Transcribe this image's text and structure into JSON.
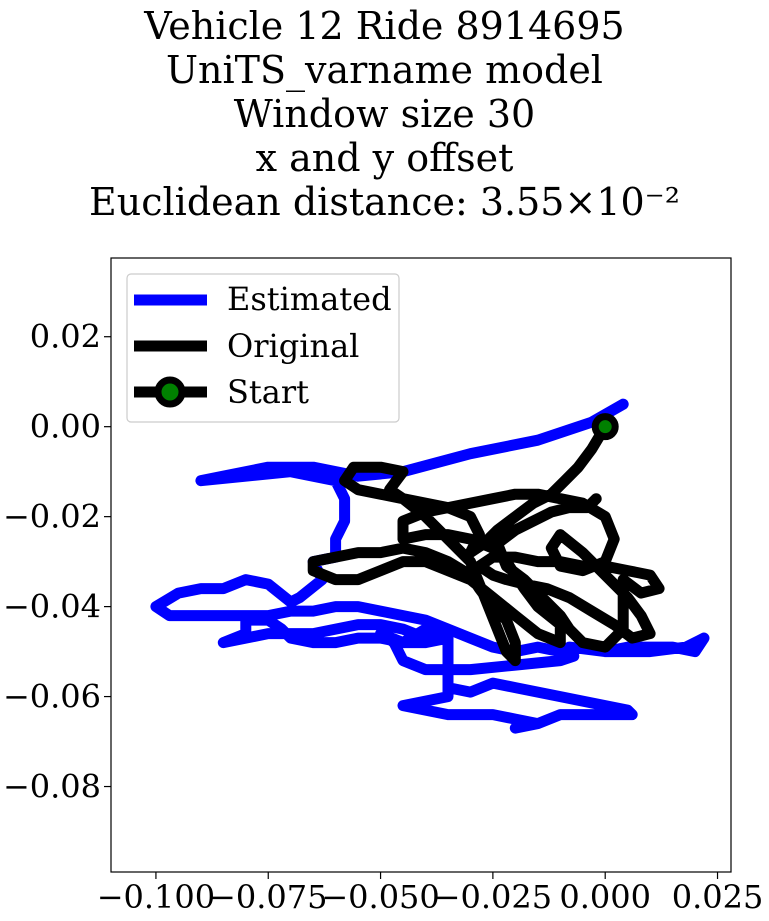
{
  "chart_data": {
    "type": "line",
    "title_lines": [
      "Vehicle 12 Ride 8914695",
      "UniTS_varname model",
      "Window size 30",
      "x and y offset",
      "Euclidean distance: 3.55×10⁻²"
    ],
    "xlim": [
      -0.11,
      0.028
    ],
    "ylim": [
      -0.099,
      0.0375
    ],
    "x_ticks": [
      {
        "value": -0.1,
        "label": "−0.100"
      },
      {
        "value": -0.075,
        "label": "−0.075"
      },
      {
        "value": -0.05,
        "label": "−0.050"
      },
      {
        "value": -0.025,
        "label": "−0.025"
      },
      {
        "value": 0.0,
        "label": "0.000"
      },
      {
        "value": 0.025,
        "label": "0.025"
      }
    ],
    "y_ticks": [
      {
        "value": 0.02,
        "label": "0.02"
      },
      {
        "value": 0.0,
        "label": "0.00"
      },
      {
        "value": -0.02,
        "label": "−0.02"
      },
      {
        "value": -0.04,
        "label": "−0.04"
      },
      {
        "value": -0.06,
        "label": "−0.06"
      },
      {
        "value": -0.08,
        "label": "−0.08"
      }
    ],
    "legend_position": "upper-left",
    "series": [
      {
        "name": "Estimated",
        "color": "#0000ff",
        "points": [
          [
            0.004,
            0.005
          ],
          [
            -0.003,
            0.001
          ],
          [
            -0.015,
            -0.003
          ],
          [
            -0.03,
            -0.006
          ],
          [
            -0.045,
            -0.01
          ],
          [
            -0.055,
            -0.011
          ],
          [
            -0.065,
            -0.009
          ],
          [
            -0.075,
            -0.009
          ],
          [
            -0.085,
            -0.011
          ],
          [
            -0.09,
            -0.012
          ],
          [
            -0.08,
            -0.011
          ],
          [
            -0.07,
            -0.01
          ],
          [
            -0.06,
            -0.012
          ],
          [
            -0.058,
            -0.016
          ],
          [
            -0.058,
            -0.021
          ],
          [
            -0.06,
            -0.025
          ],
          [
            -0.06,
            -0.029
          ],
          [
            -0.065,
            -0.03
          ],
          [
            -0.063,
            -0.034
          ],
          [
            -0.068,
            -0.038
          ],
          [
            -0.07,
            -0.039
          ],
          [
            -0.075,
            -0.035
          ],
          [
            -0.08,
            -0.034
          ],
          [
            -0.085,
            -0.036
          ],
          [
            -0.09,
            -0.036
          ],
          [
            -0.095,
            -0.037
          ],
          [
            -0.1,
            -0.04
          ],
          [
            -0.097,
            -0.042
          ],
          [
            -0.085,
            -0.042
          ],
          [
            -0.075,
            -0.042
          ],
          [
            -0.07,
            -0.041
          ],
          [
            -0.065,
            -0.041
          ],
          [
            -0.06,
            -0.04
          ],
          [
            -0.055,
            -0.04
          ],
          [
            -0.05,
            -0.041
          ],
          [
            -0.045,
            -0.042
          ],
          [
            -0.04,
            -0.043
          ],
          [
            -0.035,
            -0.045
          ],
          [
            -0.03,
            -0.047
          ],
          [
            -0.025,
            -0.049
          ],
          [
            -0.02,
            -0.05
          ],
          [
            -0.015,
            -0.049
          ],
          [
            -0.01,
            -0.05
          ],
          [
            -0.005,
            -0.049
          ],
          [
            0.0,
            -0.05
          ],
          [
            0.005,
            -0.049
          ],
          [
            0.01,
            -0.049
          ],
          [
            0.015,
            -0.049
          ],
          [
            0.02,
            -0.05
          ],
          [
            0.022,
            -0.047
          ],
          [
            0.018,
            -0.049
          ],
          [
            0.01,
            -0.05
          ],
          [
            0.0,
            -0.05
          ],
          [
            -0.008,
            -0.049
          ],
          [
            -0.007,
            -0.051
          ],
          [
            -0.01,
            -0.052
          ],
          [
            -0.02,
            -0.053
          ],
          [
            -0.03,
            -0.054
          ],
          [
            -0.04,
            -0.054
          ],
          [
            -0.045,
            -0.052
          ],
          [
            -0.047,
            -0.048
          ],
          [
            -0.05,
            -0.046
          ],
          [
            -0.045,
            -0.048
          ],
          [
            -0.04,
            -0.045
          ],
          [
            -0.035,
            -0.046
          ],
          [
            -0.04,
            -0.047
          ],
          [
            -0.045,
            -0.045
          ],
          [
            -0.05,
            -0.044
          ],
          [
            -0.055,
            -0.044
          ],
          [
            -0.06,
            -0.045
          ],
          [
            -0.065,
            -0.046
          ],
          [
            -0.07,
            -0.046
          ],
          [
            -0.075,
            -0.046
          ],
          [
            -0.08,
            -0.047
          ],
          [
            -0.085,
            -0.048
          ],
          [
            -0.08,
            -0.046
          ],
          [
            -0.08,
            -0.043
          ],
          [
            -0.075,
            -0.043
          ],
          [
            -0.072,
            -0.045
          ],
          [
            -0.07,
            -0.047
          ],
          [
            -0.065,
            -0.048
          ],
          [
            -0.06,
            -0.048
          ],
          [
            -0.055,
            -0.047
          ],
          [
            -0.05,
            -0.047
          ],
          [
            -0.045,
            -0.048
          ],
          [
            -0.04,
            -0.048
          ],
          [
            -0.035,
            -0.047
          ],
          [
            -0.035,
            -0.058
          ],
          [
            -0.03,
            -0.059
          ],
          [
            -0.025,
            -0.057
          ],
          [
            -0.02,
            -0.058
          ],
          [
            -0.015,
            -0.059
          ],
          [
            -0.01,
            -0.06
          ],
          [
            -0.005,
            -0.061
          ],
          [
            0.0,
            -0.062
          ],
          [
            0.005,
            -0.063
          ],
          [
            0.006,
            -0.064
          ],
          [
            0.0,
            -0.064
          ],
          [
            -0.005,
            -0.064
          ],
          [
            -0.01,
            -0.064
          ],
          [
            -0.015,
            -0.066
          ],
          [
            -0.02,
            -0.067
          ],
          [
            -0.015,
            -0.066
          ],
          [
            -0.02,
            -0.065
          ],
          [
            -0.025,
            -0.064
          ],
          [
            -0.03,
            -0.064
          ],
          [
            -0.035,
            -0.064
          ],
          [
            -0.04,
            -0.063
          ],
          [
            -0.045,
            -0.062
          ],
          [
            -0.04,
            -0.061
          ],
          [
            -0.035,
            -0.06
          ],
          [
            -0.035,
            -0.058
          ]
        ]
      },
      {
        "name": "Original",
        "color": "#000000",
        "points": [
          [
            0.0,
            0.0
          ],
          [
            -0.003,
            -0.005
          ],
          [
            -0.006,
            -0.009
          ],
          [
            -0.009,
            -0.012
          ],
          [
            -0.012,
            -0.015
          ],
          [
            -0.016,
            -0.017
          ],
          [
            -0.02,
            -0.02
          ],
          [
            -0.024,
            -0.023
          ],
          [
            -0.027,
            -0.026
          ],
          [
            -0.03,
            -0.028
          ],
          [
            -0.028,
            -0.024
          ],
          [
            -0.03,
            -0.02
          ],
          [
            -0.035,
            -0.018
          ],
          [
            -0.04,
            -0.017
          ],
          [
            -0.045,
            -0.016
          ],
          [
            -0.05,
            -0.015
          ],
          [
            -0.055,
            -0.014
          ],
          [
            -0.058,
            -0.012
          ],
          [
            -0.056,
            -0.009
          ],
          [
            -0.05,
            -0.009
          ],
          [
            -0.045,
            -0.01
          ],
          [
            -0.048,
            -0.014
          ],
          [
            -0.045,
            -0.016
          ],
          [
            -0.04,
            -0.02
          ],
          [
            -0.035,
            -0.025
          ],
          [
            -0.03,
            -0.03
          ],
          [
            -0.028,
            -0.035
          ],
          [
            -0.026,
            -0.04
          ],
          [
            -0.024,
            -0.045
          ],
          [
            -0.022,
            -0.05
          ],
          [
            -0.02,
            -0.052
          ],
          [
            -0.02,
            -0.048
          ],
          [
            -0.022,
            -0.043
          ],
          [
            -0.025,
            -0.04
          ],
          [
            -0.028,
            -0.036
          ],
          [
            -0.03,
            -0.033
          ],
          [
            -0.035,
            -0.03
          ],
          [
            -0.04,
            -0.028
          ],
          [
            -0.045,
            -0.027
          ],
          [
            -0.05,
            -0.028
          ],
          [
            -0.055,
            -0.028
          ],
          [
            -0.06,
            -0.029
          ],
          [
            -0.065,
            -0.03
          ],
          [
            -0.065,
            -0.032
          ],
          [
            -0.06,
            -0.034
          ],
          [
            -0.055,
            -0.034
          ],
          [
            -0.05,
            -0.032
          ],
          [
            -0.045,
            -0.03
          ],
          [
            -0.04,
            -0.03
          ],
          [
            -0.035,
            -0.032
          ],
          [
            -0.03,
            -0.034
          ],
          [
            -0.025,
            -0.038
          ],
          [
            -0.02,
            -0.042
          ],
          [
            -0.015,
            -0.046
          ],
          [
            -0.01,
            -0.048
          ],
          [
            -0.01,
            -0.044
          ],
          [
            -0.015,
            -0.04
          ],
          [
            -0.018,
            -0.036
          ],
          [
            -0.02,
            -0.033
          ],
          [
            -0.022,
            -0.03
          ],
          [
            -0.025,
            -0.027
          ],
          [
            -0.03,
            -0.025
          ],
          [
            -0.035,
            -0.024
          ],
          [
            -0.04,
            -0.024
          ],
          [
            -0.045,
            -0.025
          ],
          [
            -0.045,
            -0.021
          ],
          [
            -0.04,
            -0.019
          ],
          [
            -0.035,
            -0.018
          ],
          [
            -0.03,
            -0.017
          ],
          [
            -0.025,
            -0.016
          ],
          [
            -0.02,
            -0.015
          ],
          [
            -0.015,
            -0.015
          ],
          [
            -0.01,
            -0.016
          ],
          [
            -0.005,
            -0.017
          ],
          [
            0.0,
            -0.02
          ],
          [
            0.002,
            -0.025
          ],
          [
            0.0,
            -0.03
          ],
          [
            -0.005,
            -0.032
          ],
          [
            -0.01,
            -0.031
          ],
          [
            -0.012,
            -0.027
          ],
          [
            -0.01,
            -0.024
          ],
          [
            -0.005,
            -0.028
          ],
          [
            0.0,
            -0.033
          ],
          [
            0.005,
            -0.038
          ],
          [
            0.008,
            -0.042
          ],
          [
            0.01,
            -0.046
          ],
          [
            0.006,
            -0.047
          ],
          [
            0.002,
            -0.044
          ],
          [
            -0.003,
            -0.041
          ],
          [
            -0.008,
            -0.038
          ],
          [
            -0.013,
            -0.036
          ],
          [
            -0.018,
            -0.035
          ],
          [
            -0.022,
            -0.034
          ],
          [
            -0.025,
            -0.033
          ],
          [
            -0.028,
            -0.031
          ],
          [
            -0.025,
            -0.029
          ],
          [
            -0.02,
            -0.029
          ],
          [
            -0.015,
            -0.03
          ],
          [
            -0.01,
            -0.03
          ],
          [
            -0.005,
            -0.031
          ],
          [
            0.0,
            -0.031
          ],
          [
            0.005,
            -0.032
          ],
          [
            0.01,
            -0.033
          ],
          [
            0.012,
            -0.036
          ],
          [
            0.008,
            -0.037
          ],
          [
            0.004,
            -0.034
          ],
          [
            0.004,
            -0.045
          ],
          [
            0.0,
            -0.049
          ],
          [
            -0.005,
            -0.048
          ],
          [
            -0.008,
            -0.045
          ],
          [
            -0.01,
            -0.042
          ],
          [
            -0.012,
            -0.04
          ],
          [
            -0.015,
            -0.037
          ],
          [
            -0.018,
            -0.034
          ],
          [
            -0.022,
            -0.031
          ],
          [
            -0.024,
            -0.026
          ],
          [
            -0.02,
            -0.023
          ],
          [
            -0.016,
            -0.021
          ],
          [
            -0.012,
            -0.019
          ],
          [
            -0.008,
            -0.018
          ],
          [
            -0.004,
            -0.018
          ],
          [
            -0.002,
            -0.016
          ]
        ]
      }
    ],
    "start_marker": {
      "name": "Start",
      "x": 0.0,
      "y": 0.0,
      "color": "#008000",
      "edge_color": "#000000"
    }
  }
}
